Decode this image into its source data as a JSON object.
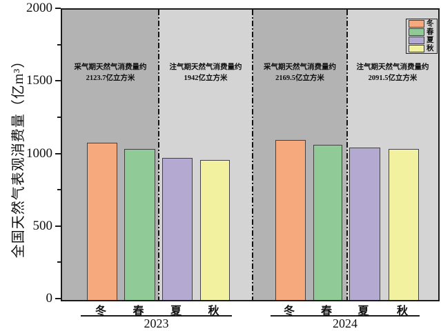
{
  "y_axis": {
    "label": "全国天然气表观消费量（亿m³）",
    "tick_labels": [
      "0",
      "500",
      "1000",
      "1500",
      "2000"
    ]
  },
  "x_axis": {
    "categories": [
      "冬",
      "春",
      "夏",
      "秋"
    ],
    "group_labels": [
      "2023",
      "2024"
    ]
  },
  "legend": {
    "position": "top-right",
    "items": [
      {
        "label": "冬",
        "color": "#f5a97d"
      },
      {
        "label": "春",
        "color": "#90cb97"
      },
      {
        "label": "夏",
        "color": "#b4aad1"
      },
      {
        "label": "秋",
        "color": "#f1f19f"
      }
    ]
  },
  "chart_data": {
    "type": "bar",
    "title": "",
    "xlabel": "",
    "ylabel": "全国天然气表观消费量（亿m³）",
    "ylim": [
      0,
      2000
    ],
    "y_major_ticks": [
      0,
      500,
      1000,
      1500,
      2000
    ],
    "y_minor_ticks": [
      250,
      750,
      1250,
      1750
    ],
    "grid": false,
    "legend_position": "top-right",
    "categories": [
      "冬",
      "春",
      "夏",
      "秋"
    ],
    "series": [
      {
        "name": "2023",
        "values": [
          1085,
          1039,
          978,
          964
        ]
      },
      {
        "name": "2024",
        "values": [
          1102,
          1068,
          1050,
          1042
        ]
      }
    ],
    "bar_colors": [
      "#f5a97d",
      "#90cb97",
      "#b4aad1",
      "#f1f19f"
    ],
    "panel_shades": {
      "dark": "#b3b3b3",
      "light": "#d4d4d4"
    },
    "panels": [
      {
        "year": "2023",
        "period": "采气期",
        "seasons": [
          "冬",
          "春"
        ],
        "shade": "dark",
        "annotation_line1": "采气期天然气消费量约",
        "annotation_line2": "2123.7亿立方米",
        "annotation_value": 2123.7
      },
      {
        "year": "2023",
        "period": "注气期",
        "seasons": [
          "夏",
          "秋"
        ],
        "shade": "light",
        "annotation_line1": "注气期天然气消费量约",
        "annotation_line2": "1942亿立方米",
        "annotation_value": 1942
      },
      {
        "year": "2024",
        "period": "采气期",
        "seasons": [
          "冬",
          "春"
        ],
        "shade": "dark",
        "annotation_line1": "采气期天然气消费量约",
        "annotation_line2": "2169.5亿立方米",
        "annotation_value": 2169.5
      },
      {
        "year": "2024",
        "period": "注气期",
        "seasons": [
          "夏",
          "秋"
        ],
        "shade": "light",
        "annotation_line1": "注气期天然气消费量约",
        "annotation_line2": "2091.5亿立方米",
        "annotation_value": 2091.5
      }
    ]
  }
}
